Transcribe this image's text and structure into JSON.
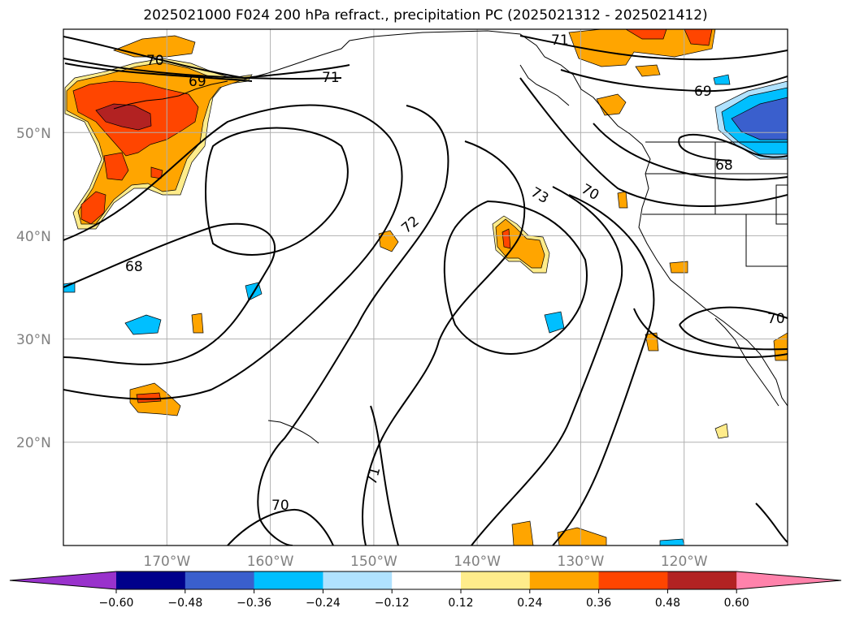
{
  "title": "2025021000 F024 200 hPa refract., precipitation PC (2025021312 - 2025021412)",
  "map": {
    "lon_range": [
      -180,
      -110
    ],
    "lat_range": [
      10,
      60
    ],
    "gridlines": true,
    "lat_labels": [
      "50°N",
      "40°N",
      "30°N",
      "20°N"
    ],
    "lon_labels": [
      "170°W",
      "160°W",
      "150°W",
      "140°W",
      "130°W",
      "120°W"
    ],
    "contour_labels": [
      "70",
      "69",
      "71",
      "71",
      "69",
      "68",
      "70",
      "73",
      "72",
      "68",
      "70",
      "71",
      "70"
    ]
  },
  "colorbar": {
    "extend": "both",
    "tick_labels": [
      "−0.60",
      "−0.48",
      "−0.36",
      "−0.24",
      "−0.12",
      "0.12",
      "0.24",
      "0.36",
      "0.48",
      "0.60"
    ],
    "colors": [
      "#9932cc",
      "#00008b",
      "#3a5fcd",
      "#00bfff",
      "#b0e2ff",
      "#ffffff",
      "#ffec8b",
      "#ffa500",
      "#ff4500",
      "#b22222",
      "#ff82ab"
    ]
  }
}
